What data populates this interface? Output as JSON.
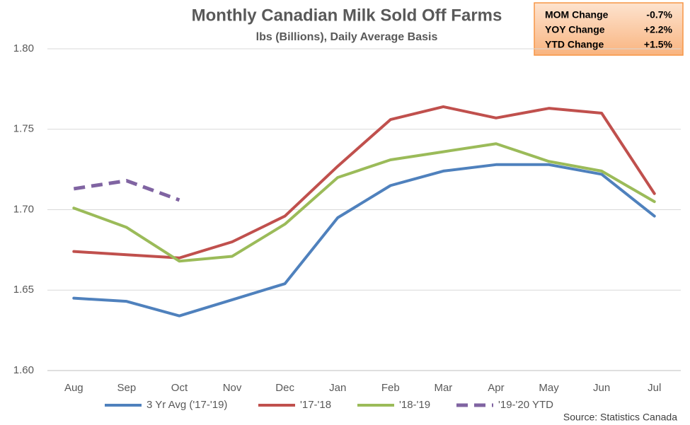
{
  "chart_data": {
    "type": "line",
    "title": "Monthly Canadian Milk Sold Off Farms",
    "subtitle": "lbs (Billions), Daily Average Basis",
    "source": "Source: Statistics Canada",
    "annotations": [
      {
        "label": "MOM Change",
        "value": "-0.7%"
      },
      {
        "label": "YOY Change",
        "value": "+2.2%"
      },
      {
        "label": "YTD Change",
        "value": "+1.5%"
      }
    ],
    "categories": [
      "Aug",
      "Sep",
      "Oct",
      "Nov",
      "Dec",
      "Jan",
      "Feb",
      "Mar",
      "Apr",
      "May",
      "Jun",
      "Jul"
    ],
    "series": [
      {
        "name": "3 Yr Avg ('17-'19)",
        "color": "#4f81bd",
        "dashed": false,
        "values": [
          1.645,
          1.643,
          1.634,
          1.644,
          1.654,
          1.695,
          1.715,
          1.724,
          1.728,
          1.728,
          1.722,
          1.696
        ]
      },
      {
        "name": "'17-'18",
        "color": "#c0504d",
        "dashed": false,
        "values": [
          1.674,
          1.672,
          1.67,
          1.68,
          1.696,
          1.727,
          1.756,
          1.764,
          1.757,
          1.763,
          1.76,
          1.71
        ]
      },
      {
        "name": "'18-'19",
        "color": "#9bbb59",
        "dashed": false,
        "values": [
          1.701,
          1.689,
          1.668,
          1.671,
          1.691,
          1.72,
          1.731,
          1.736,
          1.741,
          1.73,
          1.724,
          1.705
        ]
      },
      {
        "name": "'19-'20 YTD",
        "color": "#8064a2",
        "dashed": true,
        "values": [
          1.713,
          1.718,
          1.706,
          null,
          null,
          null,
          null,
          null,
          null,
          null,
          null,
          null
        ]
      }
    ],
    "ylim": [
      1.6,
      1.8
    ],
    "yticks": [
      {
        "value": 1.6,
        "label": "1.60"
      },
      1.65,
      {
        "value": 1.7,
        "label": "1.70"
      },
      1.75,
      {
        "value": 1.8,
        "label": "1.80"
      }
    ],
    "grid": true,
    "legend": "bottom"
  }
}
